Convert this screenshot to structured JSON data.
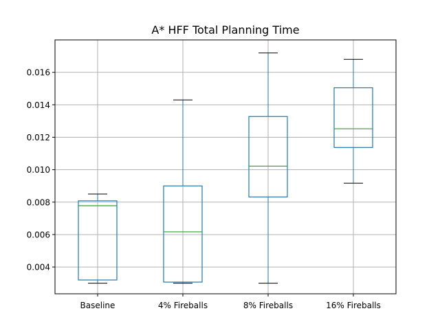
{
  "chart_data": {
    "type": "box",
    "title": "A* HFF Total Planning Time",
    "xlabel": "",
    "ylabel": "",
    "categories": [
      "Baseline",
      "4% Fireballs",
      "8% Fireballs",
      "16% Fireballs"
    ],
    "boxes": [
      {
        "name": "Baseline",
        "whisker_low": 0.003,
        "q1": 0.0032,
        "median": 0.00778,
        "q3": 0.00808,
        "whisker_high": 0.0085
      },
      {
        "name": "4% Fireballs",
        "whisker_low": 0.003,
        "q1": 0.00307,
        "median": 0.00617,
        "q3": 0.009,
        "whisker_high": 0.0143
      },
      {
        "name": "8% Fireballs",
        "whisker_low": 0.003,
        "q1": 0.00832,
        "median": 0.01022,
        "q3": 0.01328,
        "whisker_high": 0.0172
      },
      {
        "name": "16% Fireballs",
        "whisker_low": 0.00917,
        "q1": 0.01137,
        "median": 0.01252,
        "q3": 0.01505,
        "whisker_high": 0.0168
      }
    ],
    "ylim": [
      0.00235,
      0.018
    ],
    "yticks": [
      0.004,
      0.006,
      0.008,
      0.01,
      0.012,
      0.014,
      0.016
    ],
    "ytick_labels": [
      "0.004",
      "0.006",
      "0.008",
      "0.010",
      "0.012",
      "0.014",
      "0.016"
    ],
    "grid": true,
    "colors": {
      "box": "#1f77b4",
      "median": "#2ca02c",
      "whisker_cap": "#000000",
      "grid": "#b0b0b0"
    }
  }
}
